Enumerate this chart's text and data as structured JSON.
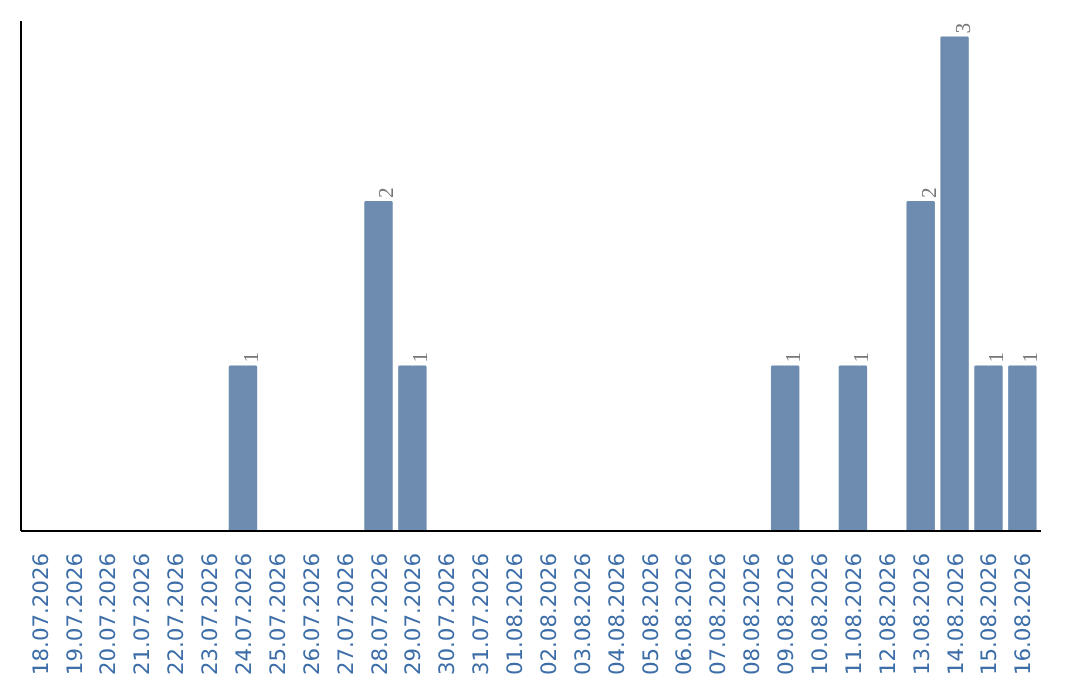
{
  "chart_data": {
    "type": "bar",
    "categories": [
      "18.07.2026",
      "19.07.2026",
      "20.07.2026",
      "21.07.2026",
      "22.07.2026",
      "23.07.2026",
      "24.07.2026",
      "25.07.2026",
      "26.07.2026",
      "27.07.2026",
      "28.07.2026",
      "29.07.2026",
      "30.07.2026",
      "31.07.2026",
      "01.08.2026",
      "02.08.2026",
      "03.08.2026",
      "04.08.2026",
      "05.08.2026",
      "06.08.2026",
      "07.08.2026",
      "08.08.2026",
      "09.08.2026",
      "10.08.2026",
      "11.08.2026",
      "12.08.2026",
      "13.08.2026",
      "14.08.2026",
      "15.08.2026",
      "16.08.2026"
    ],
    "values": [
      0,
      0,
      0,
      0,
      0,
      0,
      1,
      0,
      0,
      0,
      2,
      1,
      0,
      0,
      0,
      0,
      0,
      0,
      0,
      0,
      0,
      0,
      1,
      0,
      1,
      0,
      2,
      3,
      1,
      1
    ],
    "value_labels": [
      null,
      null,
      null,
      null,
      null,
      null,
      "1",
      null,
      null,
      null,
      "2",
      "1",
      null,
      null,
      null,
      null,
      null,
      null,
      null,
      null,
      null,
      null,
      "1",
      null,
      "1",
      null,
      "2",
      "3",
      "1",
      "1"
    ],
    "color": "#6d8caf",
    "ylim": [
      0,
      3.1
    ],
    "tick_labels": "x",
    "grid": false
  }
}
